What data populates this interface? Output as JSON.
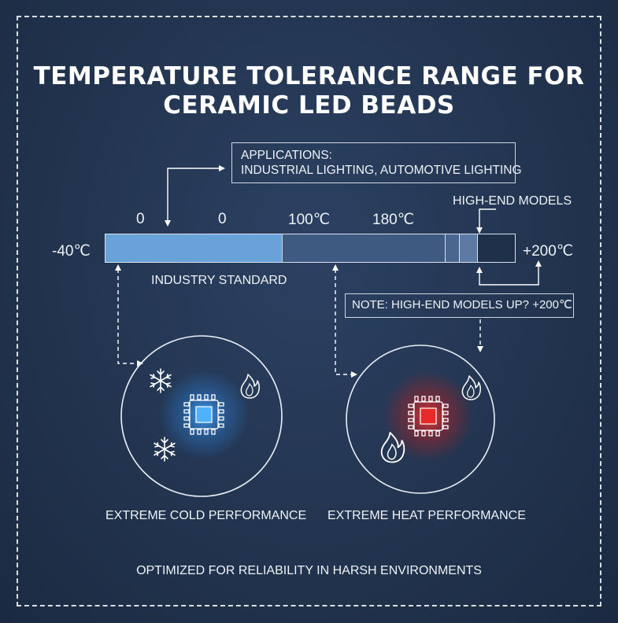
{
  "title": {
    "line1": "TEMPERATURE TOLERANCE RANGE FOR",
    "line2": "CERAMIC LED BEADS"
  },
  "applications": {
    "heading": "APPLICATIONS:",
    "list": "INDUSTRIAL LIGHTING, AUTOMOTIVE LIGHTING"
  },
  "scale": {
    "min": "-40℃",
    "max": "+200℃",
    "tick_a": "0",
    "tick_b": "0",
    "tick_c": "100℃",
    "tick_d": "180℃",
    "high_end_label": "HIGH-END MODELS",
    "industry_label": "INDUSTRY STANDARD"
  },
  "note": "NOTE: HIGH-END MODELS UP? +200℃",
  "panels": {
    "cold_caption": "EXTREME COLD PERFORMANCE",
    "heat_caption": "EXTREME HEAT PERFORMANCE"
  },
  "footer": "OPTIMIZED FOR RELIABILITY IN HARSH ENVIRONMENTS",
  "colors": {
    "background": "#22344f",
    "cold_segment": "#68a2d9",
    "hot_segment": "#3f5a80",
    "cold_glow": "#3aa0ff",
    "heat_glow": "#ff3030"
  },
  "icons": [
    "snowflake-icon",
    "flame-icon",
    "chip-icon",
    "arrow-icon"
  ]
}
